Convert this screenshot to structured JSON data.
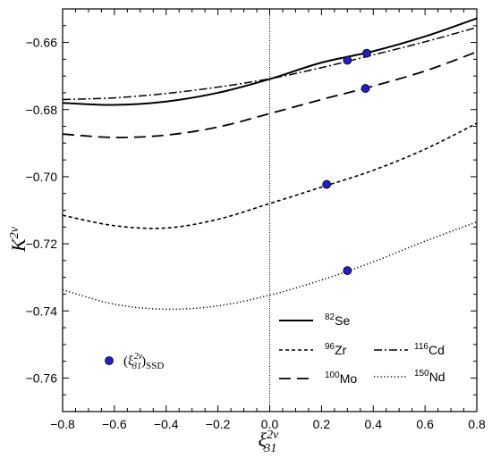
{
  "chart_data": {
    "type": "line",
    "xlabel": "ξ",
    "xlabel_sup": "2ν",
    "xlabel_sub": "31",
    "ylabel": "K",
    "ylabel_sup": "2ν",
    "xlim": [
      -0.8,
      0.8
    ],
    "ylim": [
      -0.77,
      -0.65
    ],
    "xticks": [
      -0.8,
      -0.6,
      -0.4,
      -0.2,
      0.0,
      0.2,
      0.4,
      0.6,
      0.8
    ],
    "xtick_labels": [
      "−0.8",
      "−0.6",
      "−0.4",
      "−0.2",
      "0.0",
      "0.2",
      "0.4",
      "0.6",
      "0.8"
    ],
    "yticks": [
      -0.76,
      -0.74,
      -0.72,
      -0.7,
      -0.68,
      -0.66
    ],
    "ytick_labels": [
      "−0.76",
      "−0.74",
      "−0.72",
      "−0.70",
      "−0.68",
      "−0.66"
    ],
    "vline_x": 0.0,
    "series": [
      {
        "name": "82",
        "element": "Se",
        "style": "solid",
        "x": [
          -0.8,
          -0.6,
          -0.4,
          -0.2,
          0.0,
          0.2,
          0.4,
          0.6,
          0.8
        ],
        "y": [
          -0.678,
          -0.6786,
          -0.6776,
          -0.675,
          -0.6709,
          -0.666,
          -0.6626,
          -0.6582,
          -0.6528
        ]
      },
      {
        "name": "96",
        "element": "Zr",
        "style": "short-dash",
        "x": [
          -0.8,
          -0.6,
          -0.4,
          -0.2,
          0.0,
          0.2,
          0.4,
          0.6,
          0.8
        ],
        "y": [
          -0.7115,
          -0.7146,
          -0.7153,
          -0.7127,
          -0.708,
          -0.7031,
          -0.6981,
          -0.6918,
          -0.6841
        ]
      },
      {
        "name": "100",
        "element": "Mo",
        "style": "long-dash",
        "x": [
          -0.8,
          -0.6,
          -0.4,
          -0.2,
          0.0,
          0.2,
          0.4,
          0.6,
          0.8
        ],
        "y": [
          -0.6873,
          -0.6883,
          -0.6876,
          -0.6852,
          -0.6812,
          -0.677,
          -0.673,
          -0.6685,
          -0.6628
        ]
      },
      {
        "name": "116",
        "element": "Cd",
        "style": "dash-dot",
        "x": [
          -0.8,
          -0.6,
          -0.4,
          -0.2,
          0.0,
          0.2,
          0.4,
          0.6,
          0.8
        ],
        "y": [
          -0.677,
          -0.6765,
          -0.6752,
          -0.6733,
          -0.6708,
          -0.6675,
          -0.6637,
          -0.6598,
          -0.6555
        ]
      },
      {
        "name": "150",
        "element": "Nd",
        "style": "dotted",
        "x": [
          -0.8,
          -0.6,
          -0.4,
          -0.2,
          0.0,
          0.2,
          0.4,
          0.6,
          0.8
        ],
        "y": [
          -0.7337,
          -0.738,
          -0.7395,
          -0.7385,
          -0.7353,
          -0.7308,
          -0.7254,
          -0.7192,
          -0.7135
        ]
      }
    ],
    "points": {
      "label": "(ξ",
      "label_sup": "2ν",
      "label_sub": "31",
      "label_suffix": ")",
      "label_tag": "SSD",
      "color": "#1f1fc8",
      "data": [
        {
          "x": 0.3,
          "y": -0.6653
        },
        {
          "x": 0.375,
          "y": -0.6632
        },
        {
          "x": 0.37,
          "y": -0.6737
        },
        {
          "x": 0.22,
          "y": -0.7023
        },
        {
          "x": 0.3,
          "y": -0.728
        }
      ]
    },
    "legend_placement": "bottom-right"
  }
}
